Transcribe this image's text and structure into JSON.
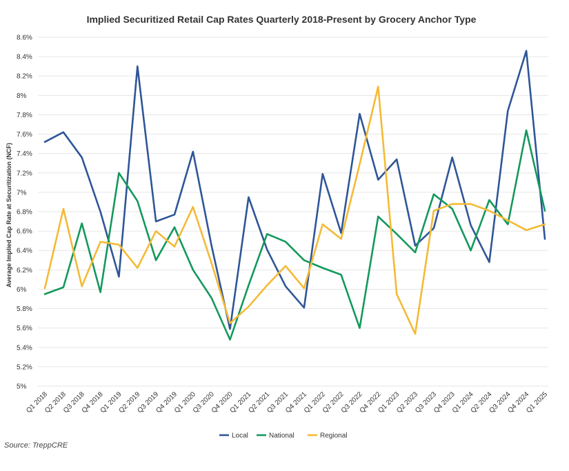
{
  "chart_data": {
    "type": "line",
    "title": "Implied Securitized Retail Cap Rates Quarterly 2018-Present by Grocery Anchor Type",
    "xlabel": "",
    "ylabel": "Average Implied Cap Rate at Securitization (NCF)",
    "ylim": [
      5,
      8.6
    ],
    "yticks": [
      5,
      5.2,
      5.4,
      5.6,
      5.8,
      6,
      6.2,
      6.4,
      6.6,
      6.8,
      7,
      7.2,
      7.4,
      7.6,
      7.8,
      8,
      8.2,
      8.4,
      8.6
    ],
    "ytick_labels": [
      "5%",
      "5.2%",
      "5.4%",
      "5.6%",
      "5.8%",
      "6%",
      "6.2%",
      "6.4%",
      "6.6%",
      "6.8%",
      "7%",
      "7.2%",
      "7.4%",
      "7.6%",
      "7.8%",
      "8%",
      "8.2%",
      "8.4%",
      "8.6%"
    ],
    "grid": true,
    "legend_position": "bottom",
    "categories": [
      "Q1 2018",
      "Q2 2018",
      "Q3 2018",
      "Q4 2018",
      "Q1 2019",
      "Q2 2019",
      "Q3 2019",
      "Q4 2019",
      "Q1 2020",
      "Q3 2020",
      "Q4 2020",
      "Q1 2021",
      "Q2 2021",
      "Q3 2021",
      "Q4 2021",
      "Q1 2022",
      "Q2 2022",
      "Q3 2022",
      "Q4 2022",
      "Q1 2023",
      "Q2 2023",
      "Q3 2023",
      "Q4 2023",
      "Q1 2024",
      "Q2 2024",
      "Q3 2024",
      "Q4 2024",
      "Q1 2025"
    ],
    "series": [
      {
        "name": "Local",
        "color": "#2e5597",
        "values": [
          7.52,
          7.62,
          7.36,
          6.8,
          6.13,
          8.3,
          6.7,
          6.77,
          7.42,
          6.45,
          5.59,
          6.95,
          6.41,
          6.03,
          5.81,
          7.19,
          6.58,
          7.81,
          7.13,
          7.34,
          6.45,
          6.63,
          7.36,
          6.66,
          6.28,
          7.84,
          8.46,
          6.52
        ]
      },
      {
        "name": "National",
        "color": "#13985c",
        "values": [
          5.95,
          6.02,
          6.68,
          5.97,
          7.2,
          6.91,
          6.3,
          6.64,
          6.2,
          5.91,
          5.48,
          6.04,
          6.57,
          6.49,
          6.3,
          6.22,
          6.15,
          5.6,
          6.75,
          6.57,
          6.38,
          6.98,
          6.83,
          6.4,
          6.92,
          6.67,
          7.64,
          6.81
        ]
      },
      {
        "name": "Regional",
        "color": "#f4ba35",
        "values": [
          6.01,
          6.83,
          6.03,
          6.49,
          6.46,
          6.22,
          6.6,
          6.44,
          6.85,
          6.27,
          5.65,
          5.82,
          6.04,
          6.24,
          6.01,
          6.67,
          6.52,
          7.29,
          8.09,
          5.95,
          5.54,
          6.81,
          6.88,
          6.88,
          6.81,
          6.71,
          6.61,
          6.67
        ]
      }
    ]
  },
  "source": "Source: TreppCRE"
}
